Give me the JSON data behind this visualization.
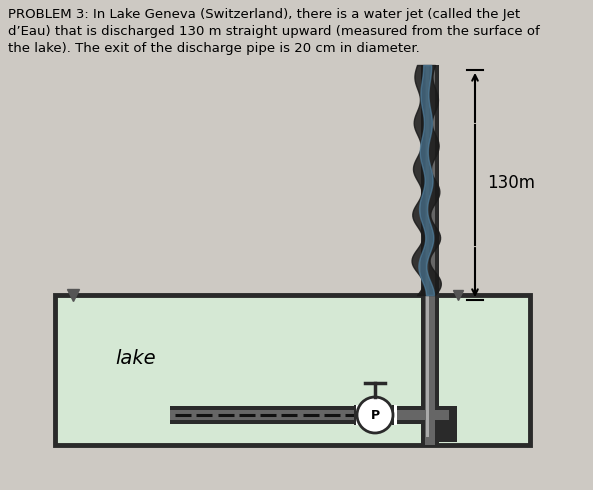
{
  "title_text": "PROBLEM 3: In Lake Geneva (Switzerland), there is a water jet (called the Jet\nd’Eau) that is discharged 130 m straight upward (measured from the surface of\nthe lake). The exit of the discharge pipe is 20 cm in diameter.",
  "bg_color": "#cdc9c3",
  "lake_color": "#d5e8d4",
  "lake_border_color": "#2a2a2a",
  "pipe_dark": "#2a2a2a",
  "pipe_mid": "#666666",
  "pipe_light": "#aaaaaa",
  "jet_dark": "#1a1a2a",
  "jet_blue": "#5588aa",
  "jet_label": "130m",
  "lake_label": "lake",
  "pump_label": "P",
  "title_fontsize": 9.5,
  "label_fontsize": 12,
  "pump_fontsize": 9
}
